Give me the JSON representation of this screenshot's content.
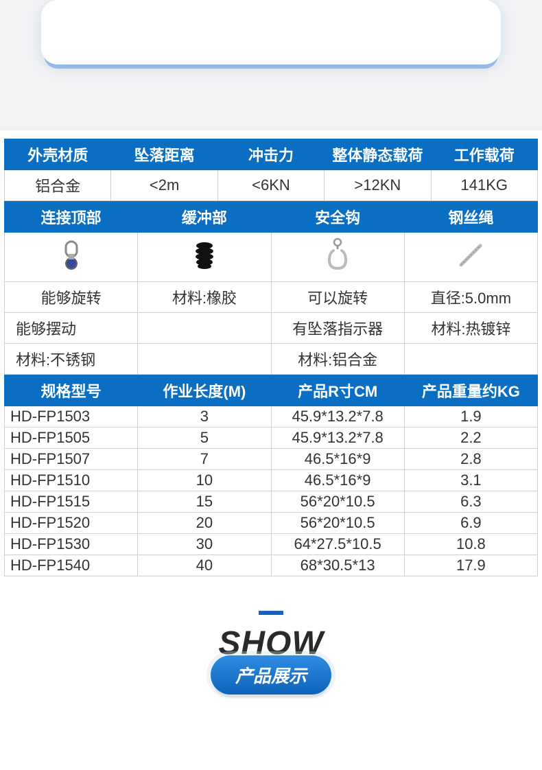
{
  "colors": {
    "header_bg": "#0a6fc2",
    "header_text": "#ffffff",
    "cell_border": "#d0d0d0",
    "page_bg": "#f2f2f4",
    "accent_bar": "#1565c0"
  },
  "table1": {
    "headers": [
      "外壳材质",
      "坠落距离",
      "冲击力",
      "整体静态载荷",
      "工作载荷"
    ],
    "row": [
      "铝合金",
      "<2m",
      "<6KN",
      ">12KN",
      "141KG"
    ]
  },
  "table2": {
    "headers": [
      "连接顶部",
      "缓冲部",
      "安全钩",
      "钢丝绳"
    ],
    "icons": [
      "swivel-top-icon",
      "rubber-bumper-icon",
      "carabiner-icon",
      "wire-rope-icon"
    ],
    "rows": [
      [
        "能够旋转",
        "材料:橡胶",
        "可以旋转",
        "直径:5.0mm"
      ],
      [
        "能够摆动",
        "",
        "有坠落指示器",
        "材料:热镀锌"
      ],
      [
        "材料:不锈钢",
        "",
        "材料:铝合金",
        ""
      ]
    ]
  },
  "table3": {
    "headers": [
      "规格型号",
      "作业长度(M)",
      "产品R寸CM",
      "产品重量约KG"
    ],
    "rows": [
      [
        "HD-FP1503",
        "3",
        "45.9*13.2*7.8",
        "1.9"
      ],
      [
        "HD-FP1505",
        "5",
        "45.9*13.2*7.8",
        "2.2"
      ],
      [
        "HD-FP1507",
        "7",
        "46.5*16*9",
        "2.8"
      ],
      [
        "HD-FP1510",
        "10",
        "46.5*16*9",
        "3.1"
      ],
      [
        "HD-FP1515",
        "15",
        "56*20*10.5",
        "6.3"
      ],
      [
        "HD-FP1520",
        "20",
        "56*20*10.5",
        "6.9"
      ],
      [
        "HD-FP1530",
        "30",
        "64*27.5*10.5",
        "10.8"
      ],
      [
        "HD-FP1540",
        "40",
        "68*30.5*13",
        "17.9"
      ]
    ]
  },
  "show": {
    "title": "SHOW",
    "subtitle": "产品展示"
  }
}
